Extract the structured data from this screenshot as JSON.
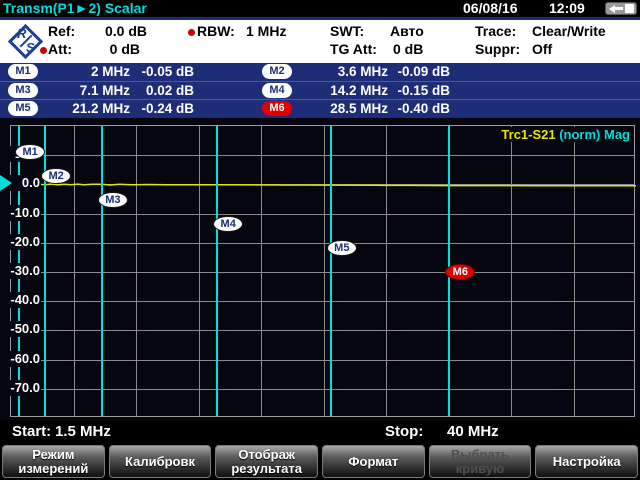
{
  "titlebar": {
    "title": "Transm(P1►2) Scalar",
    "date": "06/08/16",
    "time": "12:09"
  },
  "header": {
    "ref": {
      "label": "Ref:",
      "value": "0.0 dB",
      "marked": false
    },
    "att": {
      "label": "Att:",
      "value": "0 dB",
      "marked": true
    },
    "rbw": {
      "label": "RBW:",
      "value": "1 MHz",
      "marked": true
    },
    "swt": {
      "label": "SWT:",
      "value": "Авто",
      "marked": false
    },
    "tg_att": {
      "label": "TG Att:",
      "value": "0 dB",
      "marked": false
    },
    "trace": {
      "label": "Trace:",
      "value": "Clear/Write",
      "marked": false
    },
    "suppr": {
      "label": "Suppr:",
      "value": "Off",
      "marked": false
    }
  },
  "markers": [
    {
      "id": "M1",
      "freq": "2 MHz",
      "level": "-0.05 dB",
      "highlight": false
    },
    {
      "id": "M2",
      "freq": "3.6 MHz",
      "level": "-0.09 dB",
      "highlight": false
    },
    {
      "id": "M3",
      "freq": "7.1 MHz",
      "level": "0.02 dB",
      "highlight": false
    },
    {
      "id": "M4",
      "freq": "14.2 MHz",
      "level": "-0.15 dB",
      "highlight": false
    },
    {
      "id": "M5",
      "freq": "21.2 MHz",
      "level": "-0.24 dB",
      "highlight": false
    },
    {
      "id": "M6",
      "freq": "28.5 MHz",
      "level": "-0.40 dB",
      "highlight": true
    }
  ],
  "chart_data": {
    "type": "line",
    "title": "Trc1-S21 (norm) Mag",
    "legend": {
      "trace_name": "Trc1-S21",
      "trace_suffix": " (norm) Mag",
      "position": "top-right"
    },
    "x_unit": "MHz",
    "y_unit": "dB",
    "x_range": [
      1.5,
      40
    ],
    "x_divisions": 10,
    "y_range": [
      -80,
      20
    ],
    "y_tick_step": 10,
    "y_tick_labels": [
      "10.0",
      "0.0",
      "-10.0",
      "-20.0",
      "-30.0",
      "-40.0",
      "-50.0",
      "-60.0",
      "-70.0"
    ],
    "grid": true,
    "series": [
      {
        "name": "Trc1-S21 (norm) Mag",
        "color": "#e6e600",
        "points": [
          [
            1.5,
            -0.02
          ],
          [
            2,
            -0.05
          ],
          [
            2.4,
            0.1
          ],
          [
            2.8,
            -0.12
          ],
          [
            3.2,
            0.05
          ],
          [
            3.6,
            -0.09
          ],
          [
            4,
            0.15
          ],
          [
            4.4,
            -0.18
          ],
          [
            4.8,
            0.08
          ],
          [
            5.2,
            -0.15
          ],
          [
            5.6,
            0.1
          ],
          [
            6,
            -0.12
          ],
          [
            6.5,
            0.08
          ],
          [
            7.1,
            0.02
          ],
          [
            7.6,
            -0.2
          ],
          [
            8.2,
            0.05
          ],
          [
            9,
            -0.12
          ],
          [
            10,
            -0.05
          ],
          [
            11,
            -0.1
          ],
          [
            12.5,
            -0.12
          ],
          [
            14.2,
            -0.15
          ],
          [
            16,
            -0.17
          ],
          [
            18,
            -0.2
          ],
          [
            21.2,
            -0.24
          ],
          [
            24,
            -0.3
          ],
          [
            26,
            -0.35
          ],
          [
            28.5,
            -0.4
          ],
          [
            31,
            -0.42
          ],
          [
            34,
            -0.43
          ],
          [
            37,
            -0.44
          ],
          [
            40,
            -0.45
          ]
        ]
      }
    ],
    "markers": [
      {
        "id": "M1",
        "x": 2,
        "y": -0.05
      },
      {
        "id": "M2",
        "x": 3.6,
        "y": -0.09
      },
      {
        "id": "M3",
        "x": 7.1,
        "y": 0.02
      },
      {
        "id": "M4",
        "x": 14.2,
        "y": -0.15
      },
      {
        "id": "M5",
        "x": 21.2,
        "y": -0.24
      },
      {
        "id": "M6",
        "x": 28.5,
        "y": -0.4
      }
    ],
    "marker_line_color": "#00e0e0"
  },
  "footer": {
    "start_label": "Start:",
    "start_value": "1.5 MHz",
    "stop_label": "Stop:",
    "stop_value": "40 MHz"
  },
  "softkeys": [
    {
      "label": "Режим\nизмерений",
      "enabled": true
    },
    {
      "label": "Калибровк",
      "enabled": true
    },
    {
      "label": "Отображ\nрезультата",
      "enabled": true
    },
    {
      "label": "Формат",
      "enabled": true
    },
    {
      "label": "Выбрать\nкривую",
      "enabled": false
    },
    {
      "label": "Настройка",
      "enabled": true
    }
  ],
  "colors": {
    "accent_cyan": "#00dcdc",
    "trace_yellow": "#e6e600",
    "table_navy": "#1e2d78",
    "marker_red": "#e00000",
    "grid_gray": "#8a8a8a"
  }
}
